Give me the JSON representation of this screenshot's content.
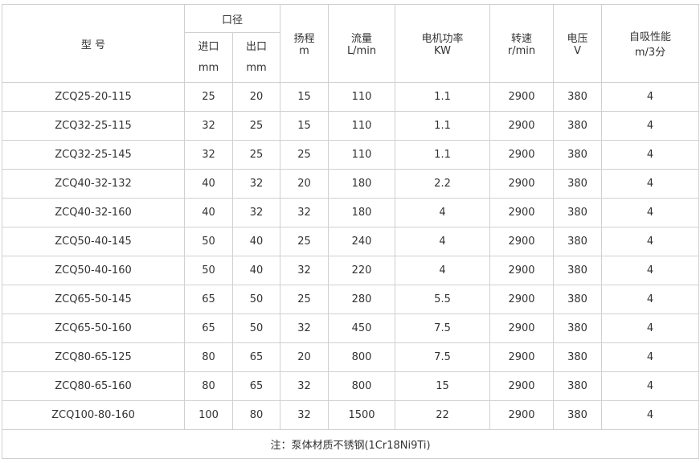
{
  "header": {
    "model": "型 号",
    "diameter": "口径",
    "inlet": [
      "进口",
      "mm"
    ],
    "outlet": [
      "出口",
      "mm"
    ],
    "head": [
      "扬程",
      "m"
    ],
    "flow": [
      "流量",
      "L/min"
    ],
    "power": [
      "电机功率",
      "KW"
    ],
    "speed": [
      "转速",
      "r/min"
    ],
    "voltage": [
      "电压",
      "V"
    ],
    "suction": [
      "自吸性能",
      "m/3分"
    ]
  },
  "rows": [
    [
      "ZCQ25-20-115",
      "25",
      "20",
      "15",
      "110",
      "1.1",
      "2900",
      "380",
      "4"
    ],
    [
      "ZCQ32-25-115",
      "32",
      "25",
      "15",
      "110",
      "1.1",
      "2900",
      "380",
      "4"
    ],
    [
      "ZCQ32-25-145",
      "32",
      "25",
      "25",
      "110",
      "1.1",
      "2900",
      "380",
      "4"
    ],
    [
      "ZCQ40-32-132",
      "40",
      "32",
      "20",
      "180",
      "2.2",
      "2900",
      "380",
      "4"
    ],
    [
      "ZCQ40-32-160",
      "40",
      "32",
      "32",
      "180",
      "4",
      "2900",
      "380",
      "4"
    ],
    [
      "ZCQ50-40-145",
      "50",
      "40",
      "25",
      "240",
      "4",
      "2900",
      "380",
      "4"
    ],
    [
      "ZCQ50-40-160",
      "50",
      "40",
      "32",
      "220",
      "4",
      "2900",
      "380",
      "4"
    ],
    [
      "ZCQ65-50-145",
      "65",
      "50",
      "25",
      "280",
      "5.5",
      "2900",
      "380",
      "4"
    ],
    [
      "ZCQ65-50-160",
      "65",
      "50",
      "32",
      "450",
      "7.5",
      "2900",
      "380",
      "4"
    ],
    [
      "ZCQ80-65-125",
      "80",
      "65",
      "20",
      "800",
      "7.5",
      "2900",
      "380",
      "4"
    ],
    [
      "ZCQ80-65-160",
      "80",
      "65",
      "32",
      "800",
      "15",
      "2900",
      "380",
      "4"
    ],
    [
      "ZCQ100-80-160",
      "100",
      "80",
      "32",
      "1500",
      "22",
      "2900",
      "380",
      "4"
    ]
  ],
  "note": "注：泵体材质不锈钢(1Cr18Ni9Ti)"
}
